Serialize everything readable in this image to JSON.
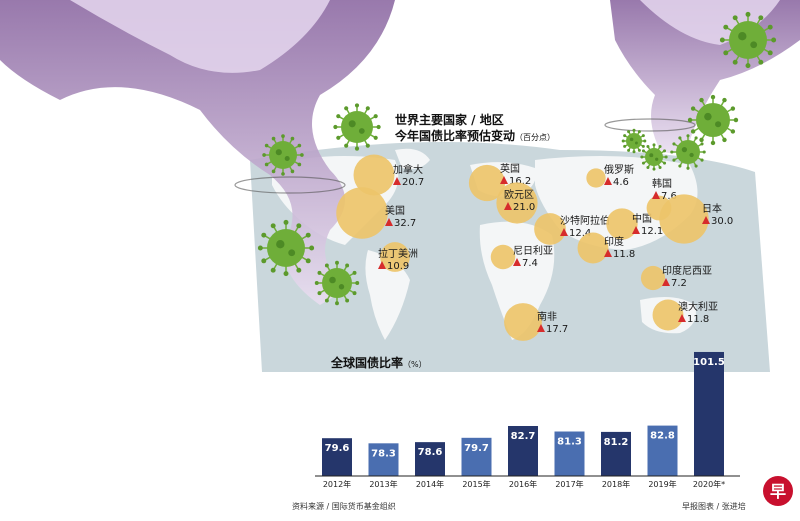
{
  "map_title": {
    "line1": "世界主要国家 / 地区",
    "line2": "今年国债比率预估变动",
    "unit": "（百分点）"
  },
  "countries": [
    {
      "name": "加拿大",
      "change": "20.7"
    },
    {
      "name": "美国",
      "change": "32.7"
    },
    {
      "name": "拉丁美洲",
      "change": "10.9"
    },
    {
      "name": "英国",
      "change": "16.2"
    },
    {
      "name": "欧元区",
      "change": "21.0"
    },
    {
      "name": "俄罗斯",
      "change": "4.6"
    },
    {
      "name": "沙特阿拉伯",
      "change": "12.4"
    },
    {
      "name": "中国",
      "change": "12.1"
    },
    {
      "name": "韩国",
      "change": "7.6"
    },
    {
      "name": "日本",
      "change": "30.0"
    },
    {
      "name": "尼日利亚",
      "change": "7.4"
    },
    {
      "name": "印度",
      "change": "11.8"
    },
    {
      "name": "印度尼西亚",
      "change": "7.2"
    },
    {
      "name": "澳大利亚",
      "change": "11.8"
    },
    {
      "name": "南非",
      "change": "17.7"
    }
  ],
  "chart_data": {
    "type": "bar",
    "title": "全球国债比率",
    "unit": "（%）",
    "categories": [
      "2012年",
      "2013年",
      "2014年",
      "2015年",
      "2016年",
      "2017年",
      "2018年",
      "2019年",
      "2020年*"
    ],
    "values": [
      79.6,
      78.3,
      78.6,
      79.7,
      82.7,
      81.3,
      81.2,
      82.8,
      101.5
    ],
    "colors": [
      "#25366b",
      "#4a6eb0",
      "#25366b",
      "#4a6eb0",
      "#25366b",
      "#4a6eb0",
      "#25366b",
      "#4a6eb0",
      "#25366b"
    ],
    "ylim": [
      70,
      102
    ],
    "grid": false,
    "legend": "none"
  },
  "footer": {
    "source": "资料来源 / 国际货币基金组织",
    "credit": "早报图表 / 张进培"
  },
  "logo": "早",
  "colors": {
    "bubble": "#edc46a",
    "triangle": "#d62c2c",
    "map_land": "#f4f6f7",
    "map_sea": "#cad7dc",
    "smoke": "#a884b8",
    "virus": "#6fae39"
  }
}
